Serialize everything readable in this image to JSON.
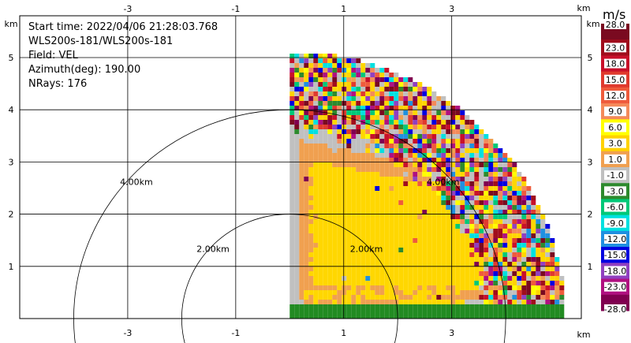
{
  "chart_data": {
    "type": "heatmap",
    "title": "",
    "info_lines": [
      "Start time: 2022/04/06 21:28:03.768",
      "WLS200s-181/WLS200s-181",
      "Field: VEL",
      "Azimuth(deg): 190.00",
      "NRays: 176"
    ],
    "axis_unit": "km",
    "xlim": [
      -5,
      5.4
    ],
    "ylim": [
      0,
      5.8
    ],
    "x_ticks": [
      -3,
      -1,
      1,
      3
    ],
    "y_ticks": [
      1,
      2,
      3,
      4,
      5
    ],
    "grid": true,
    "range_rings": [
      {
        "radius_km": 2,
        "label": "2.00km"
      },
      {
        "radius_km": 4,
        "label": "4.00km"
      }
    ],
    "sector": {
      "x_range_km": [
        0,
        5.1
      ],
      "y_range_km": [
        0,
        5.1
      ],
      "max_range_km": 5.1
    },
    "colorbar": {
      "unit": "m/s",
      "labels": [
        "28.0",
        "23.0",
        "18.0",
        "15.0",
        "12.0",
        "9.0",
        "6.0",
        "3.0",
        "1.0",
        "-1.0",
        "-3.0",
        "-6.0",
        "-9.0",
        "-12.0",
        "-15.0",
        "-18.0",
        "-23.0",
        "-28.0"
      ],
      "colors": [
        "#7a0a20",
        "#a00d1c",
        "#c8102a",
        "#e03a2e",
        "#ef5b3c",
        "#f48a5a",
        "#ffff00",
        "#ffd200",
        "#f0a050",
        "#c0c0c0",
        "#2d8a2d",
        "#00c878",
        "#00e0e0",
        "#2090e0",
        "#0000e0",
        "#9040c0",
        "#b01080",
        "#800050"
      ]
    },
    "bands": [
      {
        "field": "green",
        "r_min_km": 0.0,
        "r_max_km": 0.25,
        "color": "#228b22"
      },
      {
        "field": "gray",
        "r_min_km": 0.25,
        "r_max_km": 5.1,
        "color": "#c0c0c0"
      },
      {
        "field": "orange",
        "r_min_km": 0.5,
        "r_max_km": 3.8,
        "color": "#f0a050"
      },
      {
        "field": "yellow",
        "r_min_km": 0.55,
        "r_max_km": 3.6,
        "color": "#ffd700"
      },
      {
        "field": "noise",
        "r_min_km": 3.6,
        "r_max_km": 5.1,
        "color": "mixed"
      }
    ]
  }
}
